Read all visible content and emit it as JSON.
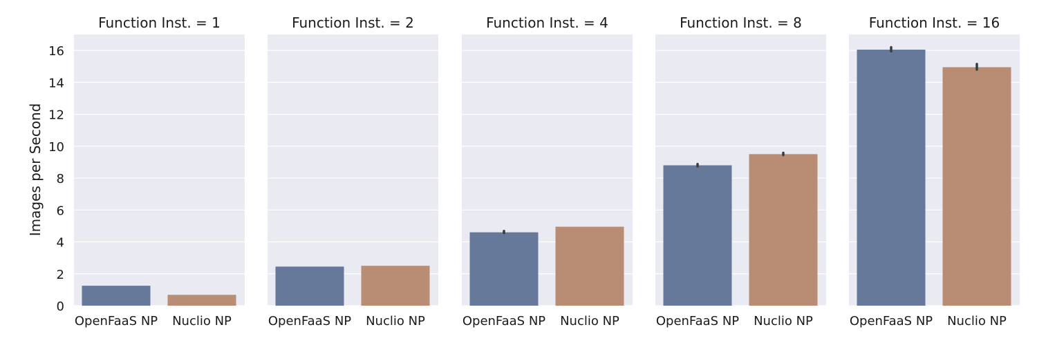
{
  "chart_data": {
    "type": "bar",
    "ylabel": "Images per Second",
    "xlabel": "",
    "ylim": [
      0,
      17
    ],
    "yticks": [
      0,
      2,
      4,
      6,
      8,
      10,
      12,
      14,
      16
    ],
    "grid": true,
    "colors": [
      "#66799a",
      "#b98d73"
    ],
    "categories": [
      "OpenFaaS NP",
      "Nuclio NP"
    ],
    "panels": [
      {
        "title": "Function Inst. = 1",
        "values": [
          1.25,
          0.68
        ],
        "errors": [
          [
            1.25,
            1.25
          ],
          [
            0.68,
            0.68
          ]
        ]
      },
      {
        "title": "Function Inst. = 2",
        "values": [
          2.45,
          2.5
        ],
        "errors": [
          [
            2.45,
            2.45
          ],
          [
            2.5,
            2.5
          ]
        ]
      },
      {
        "title": "Function Inst. = 4",
        "values": [
          4.6,
          4.95
        ],
        "errors": [
          [
            4.56,
            4.68
          ],
          [
            4.95,
            4.95
          ]
        ]
      },
      {
        "title": "Function Inst. = 8",
        "values": [
          8.8,
          9.5
        ],
        "errors": [
          [
            8.74,
            8.88
          ],
          [
            9.44,
            9.58
          ]
        ]
      },
      {
        "title": "Function Inst. = 16",
        "values": [
          16.05,
          14.95
        ],
        "errors": [
          [
            15.95,
            16.2
          ],
          [
            14.8,
            15.15
          ]
        ]
      }
    ]
  }
}
